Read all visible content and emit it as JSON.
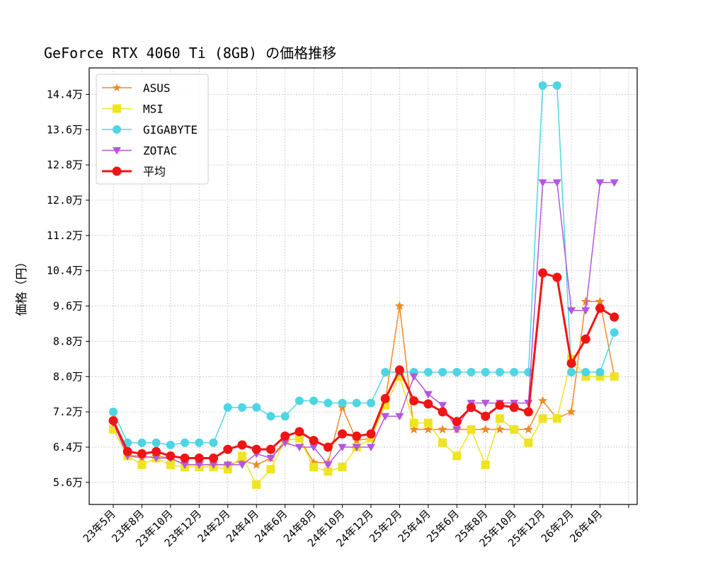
{
  "chart_data": {
    "type": "line",
    "title": "GeForce RTX 4060 Ti (8GB) の価格推移",
    "xlabel": "",
    "ylabel": "価格（円）",
    "x_tick_labels": [
      "23年5月",
      "23年8月",
      "23年10月",
      "23年12月",
      "24年2月",
      "24年4月",
      "24年6月",
      "24年8月",
      "24年10月",
      "24年12月",
      "25年2月",
      "25年4月",
      "25年6月",
      "25年8月",
      "25年10月",
      "25年12月",
      "26年2月",
      "26年4月"
    ],
    "y_tick_labels": [
      "5.6万",
      "6.4万",
      "7.2万",
      "8.0万",
      "8.8万",
      "9.6万",
      "10.4万",
      "11.2万",
      "12.0万",
      "12.8万",
      "13.6万",
      "14.4万"
    ],
    "y_ticks": [
      56000,
      64000,
      72000,
      80000,
      88000,
      96000,
      104000,
      112000,
      120000,
      128000,
      136000,
      144000
    ],
    "ylim": [
      51000,
      150000
    ],
    "grid": true,
    "legend_position": "top-left",
    "series": [
      {
        "name": "ASUS",
        "color": "#F08A24",
        "marker": "star",
        "values": [
          68000,
          62000,
          61500,
          62000,
          61500,
          60000,
          60000,
          60000,
          60000,
          61000,
          60000,
          61500,
          65500,
          66000,
          60500,
          60500,
          73000,
          65500,
          66000,
          74500,
          96000,
          68000,
          68000,
          68000,
          68000,
          68000,
          68000,
          68000,
          68000,
          68000,
          74500,
          70500,
          72000,
          97000,
          97000,
          80000
        ]
      },
      {
        "name": "MSI",
        "color": "#EEE422",
        "marker": "square",
        "values": [
          68000,
          62000,
          60000,
          61500,
          60000,
          59500,
          59500,
          59500,
          59000,
          62000,
          55500,
          59000,
          65500,
          66000,
          59500,
          58500,
          59500,
          64000,
          66000,
          73500,
          80000,
          69500,
          69500,
          65000,
          62000,
          68000,
          60000,
          70500,
          68000,
          65000,
          70500,
          70500,
          84000,
          80000,
          80000,
          80000
        ]
      },
      {
        "name": "GIGABYTE",
        "color": "#4DD5E4",
        "marker": "circle",
        "values": [
          72000,
          65000,
          65000,
          65000,
          64500,
          65000,
          65000,
          65000,
          73000,
          73000,
          73000,
          71000,
          71000,
          74500,
          74500,
          74000,
          74000,
          74000,
          74000,
          81000,
          81000,
          81000,
          81000,
          81000,
          81000,
          81000,
          81000,
          81000,
          81000,
          81000,
          146000,
          146000,
          81000,
          81000,
          81000,
          90000
        ]
      },
      {
        "name": "ZOTAC",
        "color": "#B456DE",
        "marker": "triangle_down",
        "values": [
          69500,
          62000,
          62000,
          61500,
          61500,
          60000,
          60000,
          60000,
          60000,
          60000,
          62500,
          61500,
          65000,
          64000,
          64000,
          60000,
          64000,
          64000,
          64000,
          71000,
          71000,
          80000,
          76000,
          73500,
          68000,
          74000,
          74000,
          74000,
          74000,
          74000,
          124000,
          124000,
          95000,
          95000,
          124000,
          124000
        ]
      },
      {
        "name": "平均",
        "color": "#F11414",
        "marker": "circle",
        "values": [
          70000,
          63000,
          62500,
          63000,
          62000,
          61500,
          61500,
          61500,
          63500,
          64500,
          63500,
          63500,
          66500,
          67500,
          65500,
          64000,
          67000,
          66500,
          67000,
          75000,
          81500,
          74500,
          73800,
          72000,
          69800,
          73000,
          71000,
          73500,
          73000,
          72000,
          103500,
          102500,
          83000,
          88500,
          95500,
          93500
        ]
      }
    ]
  }
}
